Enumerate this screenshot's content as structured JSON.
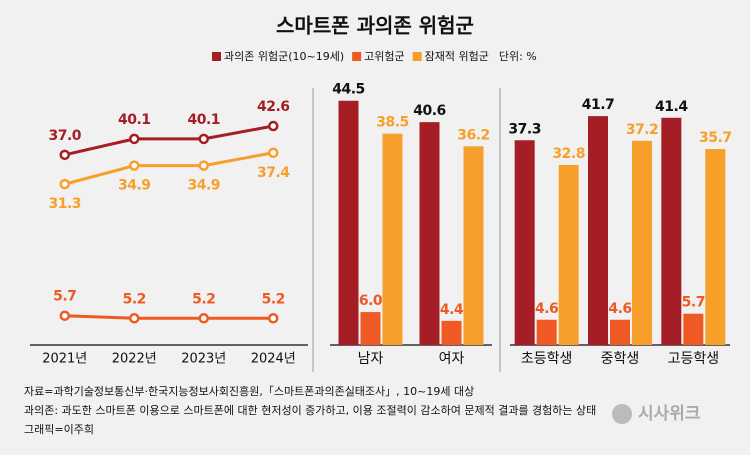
{
  "chart_data": [
    {
      "type": "line",
      "title": "스마트폰 과의존 위험군",
      "unit": "단위: %",
      "categories": [
        "2021년",
        "2022년",
        "2023년",
        "2024년"
      ],
      "series": [
        {
          "name": "과의존 위험군(10~19세)",
          "color": "#a51d25",
          "values": [
            37.0,
            40.1,
            40.1,
            42.6
          ],
          "value_labels": [
            "37.0",
            "40.1",
            "40.1",
            "42.6"
          ]
        },
        {
          "name": "고위험군",
          "color": "#ef5a24",
          "values": [
            5.7,
            5.2,
            5.2,
            5.2
          ]
        },
        {
          "name": "잠재적 위험군",
          "color": "#f6a02b",
          "values": [
            31.3,
            34.9,
            34.9,
            37.4
          ]
        }
      ],
      "ylim": [
        0,
        50
      ]
    },
    {
      "type": "bar",
      "categories": [
        "남자",
        "여자"
      ],
      "series": [
        {
          "color": "#a51d25",
          "values": [
            44.5,
            40.6
          ]
        },
        {
          "color": "#ef5a24",
          "values": [
            6.0,
            4.4
          ],
          "value_labels": [
            "6.0",
            "4.4"
          ]
        },
        {
          "color": "#f6a02b",
          "values": [
            38.5,
            36.2
          ]
        }
      ],
      "ylim": [
        0,
        45
      ]
    },
    {
      "type": "bar",
      "categories": [
        "초등학생",
        "중학생",
        "고등학생"
      ],
      "series": [
        {
          "color": "#a51d25",
          "values": [
            37.3,
            41.7,
            41.4
          ]
        },
        {
          "color": "#ef5a24",
          "values": [
            4.6,
            4.6,
            5.7
          ]
        },
        {
          "color": "#f6a02b",
          "values": [
            32.8,
            37.2,
            35.7
          ]
        }
      ],
      "ylim": [
        0,
        45
      ]
    }
  ],
  "footer": {
    "source": "자료=과학기술정보통신부·한국지능정보사회진흥원,「스마트폰과의존실태조사」, 10~19세 대상",
    "definition": "과의존: 과도한 스마트폰 이용으로 스마트폰에 대한 현저성이 증가하고, 이용 조절력이 감소하여 문제적 결과를 경험하는 상태",
    "credit": "그래픽=이주희"
  },
  "logo": "시사위크"
}
